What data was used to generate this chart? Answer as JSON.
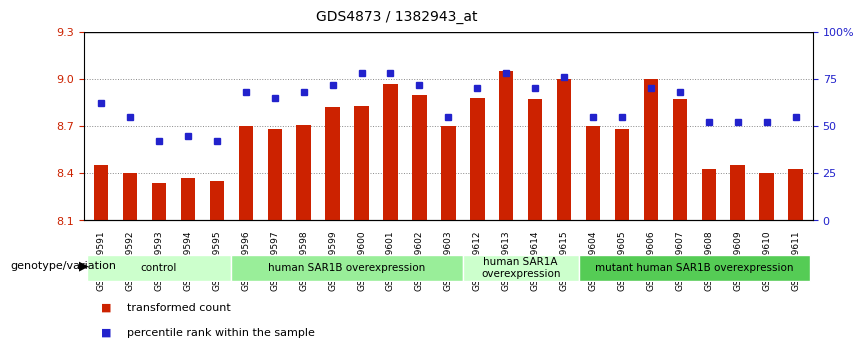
{
  "title": "GDS4873 / 1382943_at",
  "samples": [
    "GSM1279591",
    "GSM1279592",
    "GSM1279593",
    "GSM1279594",
    "GSM1279595",
    "GSM1279596",
    "GSM1279597",
    "GSM1279598",
    "GSM1279599",
    "GSM1279600",
    "GSM1279601",
    "GSM1279602",
    "GSM1279603",
    "GSM1279612",
    "GSM1279613",
    "GSM1279614",
    "GSM1279615",
    "GSM1279604",
    "GSM1279605",
    "GSM1279606",
    "GSM1279607",
    "GSM1279608",
    "GSM1279609",
    "GSM1279610",
    "GSM1279611"
  ],
  "red_values": [
    8.45,
    8.4,
    8.34,
    8.37,
    8.35,
    8.7,
    8.68,
    8.71,
    8.82,
    8.83,
    8.97,
    8.9,
    8.7,
    8.88,
    9.05,
    8.87,
    9.0,
    8.7,
    8.68,
    9.0,
    8.87,
    8.43,
    8.45,
    8.4,
    8.43
  ],
  "blue_values": [
    62,
    55,
    42,
    45,
    42,
    68,
    65,
    68,
    72,
    78,
    78,
    72,
    55,
    70,
    78,
    70,
    76,
    55,
    55,
    70,
    68,
    52,
    52,
    52,
    55
  ],
  "ylim_left": [
    8.1,
    9.3
  ],
  "ylim_right": [
    0,
    100
  ],
  "yticks_left": [
    8.1,
    8.4,
    8.7,
    9.0,
    9.3
  ],
  "ytick_labels_left": [
    "8.1",
    "8.4",
    "8.7",
    "9.0",
    "9.3"
  ],
  "yticks_right": [
    0,
    25,
    50,
    75,
    100
  ],
  "ytick_labels_right": [
    "0",
    "25",
    "50",
    "75",
    "100%"
  ],
  "bar_color": "#cc2200",
  "dot_color": "#2222cc",
  "groups": [
    {
      "label": "control",
      "start": 0,
      "end": 5,
      "color": "#ccffcc"
    },
    {
      "label": "human SAR1B overexpression",
      "start": 5,
      "end": 13,
      "color": "#99ee99"
    },
    {
      "label": "human SAR1A\noverexpression",
      "start": 13,
      "end": 17,
      "color": "#ccffcc"
    },
    {
      "label": "mutant human SAR1B overexpression",
      "start": 17,
      "end": 25,
      "color": "#55cc55"
    }
  ],
  "group_label_prefix": "genotype/variation",
  "legend_red": "transformed count",
  "legend_blue": "percentile rank within the sample",
  "grid_color": "#999999",
  "background_color": "#ffffff",
  "bar_width": 0.5
}
